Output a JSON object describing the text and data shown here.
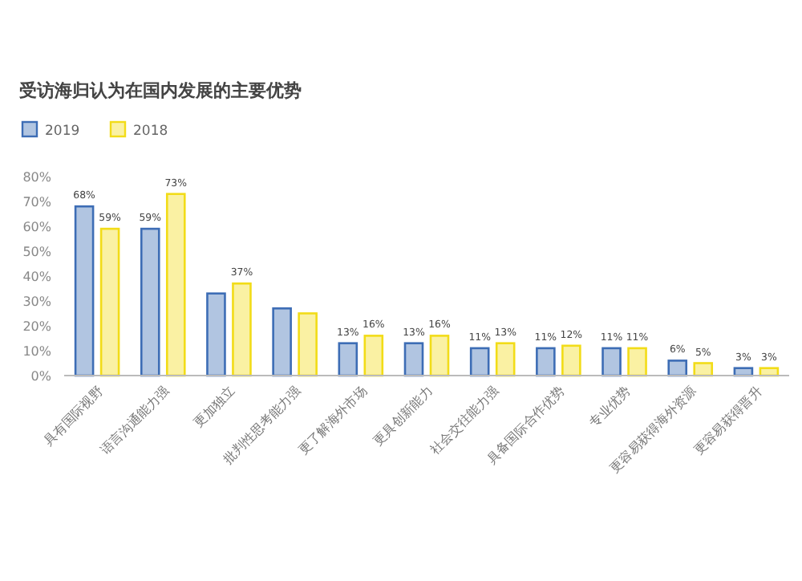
{
  "chart_data": {
    "type": "bar",
    "title": "受访海归认为在国内发展的主要优势",
    "categories": [
      "具有国际视野",
      "语言沟通能力强",
      "更加独立",
      "批判性思考能力强",
      "更了解海外市场",
      "更具创新能力",
      "社会交往能力强",
      "具备国际合作优势",
      "专业优势",
      "更容易获得海外资源",
      "更容易获得晋升"
    ],
    "series": [
      {
        "name": "2019",
        "color": "#3d6db5",
        "values": [
          68,
          59,
          33,
          27,
          13,
          13,
          11,
          11,
          11,
          6,
          3
        ],
        "value_labels": [
          "68%",
          "59%",
          null,
          null,
          "13%",
          "13%",
          "11%",
          "11%",
          "11%",
          "6%",
          "3%"
        ]
      },
      {
        "name": "2018",
        "color": "#f2dc18",
        "values": [
          59,
          73,
          37,
          25,
          16,
          16,
          13,
          12,
          11,
          5,
          3
        ],
        "value_labels": [
          "59%",
          "73%",
          "37%",
          null,
          "16%",
          "16%",
          "13%",
          "12%",
          "11%",
          "5%",
          "3%"
        ]
      }
    ],
    "ylim": [
      0,
      80
    ],
    "yticks": [
      {
        "value": 0,
        "label": "0%"
      },
      {
        "value": 10,
        "label": "10%"
      },
      {
        "value": 20,
        "label": "20%"
      },
      {
        "value": 30,
        "label": "30%"
      },
      {
        "value": 40,
        "label": "40%"
      },
      {
        "value": 50,
        "label": "50%"
      },
      {
        "value": 60,
        "label": "60%"
      },
      {
        "value": 70,
        "label": "70%"
      },
      {
        "value": 80,
        "label": "80%"
      }
    ],
    "legend": "top left"
  }
}
